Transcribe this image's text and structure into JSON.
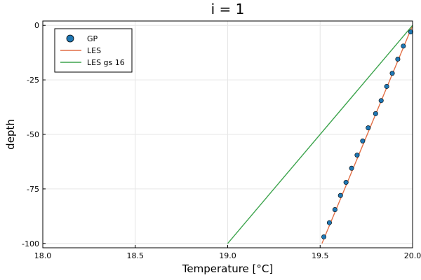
{
  "colors": {
    "gp_marker": "#1f77b4",
    "les_line": "#e26f46",
    "les_gs16_line": "#3da44d",
    "grid": "#e6e6e6"
  },
  "chart_data": {
    "type": "line",
    "title": "i = 1",
    "xlabel": "Temperature [°C]",
    "ylabel": "depth",
    "xlim": [
      18.0,
      20.0
    ],
    "ylim": [
      -102,
      2
    ],
    "xticks": [
      18.0,
      18.5,
      19.0,
      19.5,
      20.0
    ],
    "xtick_labels": [
      "18.0",
      "18.5",
      "19.0",
      "19.5",
      "20.0"
    ],
    "yticks": [
      0,
      -25,
      -50,
      -75,
      -100
    ],
    "ytick_labels": [
      "0",
      "-25",
      "-50",
      "-75",
      "-100"
    ],
    "grid": true,
    "legend_position": "top-left",
    "series": [
      {
        "name": "GP",
        "kind": "scatter",
        "color": "#1f77b4",
        "x": [
          19.99,
          19.95,
          19.92,
          19.89,
          19.86,
          19.83,
          19.8,
          19.76,
          19.73,
          19.7,
          19.67,
          19.64,
          19.61,
          19.58,
          19.55,
          19.52
        ],
        "y": [
          -3,
          -9.5,
          -15.5,
          -22,
          -28,
          -34.5,
          -40.5,
          -47,
          -53,
          -59.5,
          -65.5,
          -72,
          -78,
          -84.5,
          -90.5,
          -97
        ]
      },
      {
        "name": "LES",
        "kind": "line",
        "color": "#e26f46",
        "x": [
          20.0,
          19.51
        ],
        "y": [
          0,
          -100
        ]
      },
      {
        "name": "LES gs 16",
        "kind": "line",
        "color": "#3da44d",
        "x": [
          20.0,
          19.0
        ],
        "y": [
          0,
          -100
        ]
      }
    ]
  }
}
